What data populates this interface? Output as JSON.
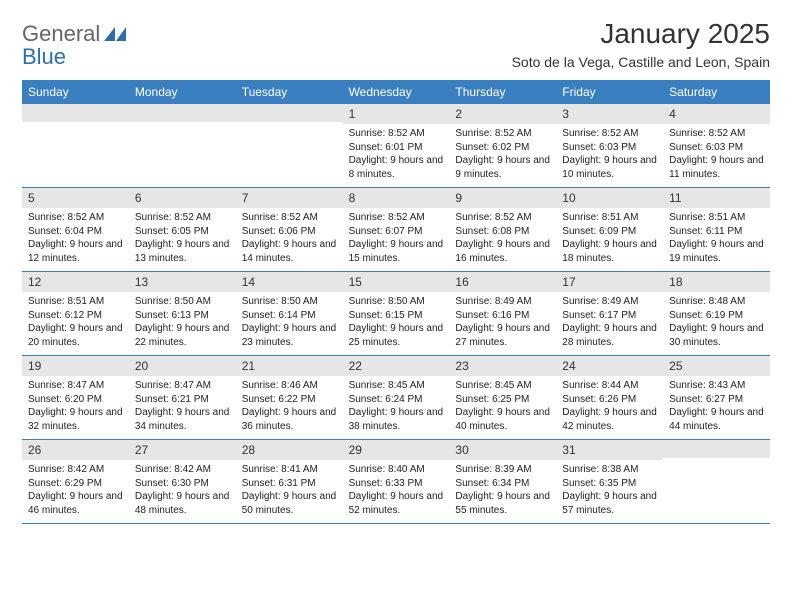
{
  "brand": {
    "word1": "General",
    "word2": "Blue"
  },
  "title": "January 2025",
  "location": "Soto de la Vega, Castille and Leon, Spain",
  "colors": {
    "header_bg": "#3a7fbf",
    "header_fg": "#ffffff",
    "daynum_bg": "#e6e6e6",
    "rule": "#3a7fbf",
    "text": "#333333",
    "brand_accent": "#2f6fa8"
  },
  "day_labels": [
    "Sunday",
    "Monday",
    "Tuesday",
    "Wednesday",
    "Thursday",
    "Friday",
    "Saturday"
  ],
  "weeks": [
    [
      {
        "n": "",
        "sr": "",
        "ss": "",
        "dl": ""
      },
      {
        "n": "",
        "sr": "",
        "ss": "",
        "dl": ""
      },
      {
        "n": "",
        "sr": "",
        "ss": "",
        "dl": ""
      },
      {
        "n": "1",
        "sr": "Sunrise: 8:52 AM",
        "ss": "Sunset: 6:01 PM",
        "dl": "Daylight: 9 hours and 8 minutes."
      },
      {
        "n": "2",
        "sr": "Sunrise: 8:52 AM",
        "ss": "Sunset: 6:02 PM",
        "dl": "Daylight: 9 hours and 9 minutes."
      },
      {
        "n": "3",
        "sr": "Sunrise: 8:52 AM",
        "ss": "Sunset: 6:03 PM",
        "dl": "Daylight: 9 hours and 10 minutes."
      },
      {
        "n": "4",
        "sr": "Sunrise: 8:52 AM",
        "ss": "Sunset: 6:03 PM",
        "dl": "Daylight: 9 hours and 11 minutes."
      }
    ],
    [
      {
        "n": "5",
        "sr": "Sunrise: 8:52 AM",
        "ss": "Sunset: 6:04 PM",
        "dl": "Daylight: 9 hours and 12 minutes."
      },
      {
        "n": "6",
        "sr": "Sunrise: 8:52 AM",
        "ss": "Sunset: 6:05 PM",
        "dl": "Daylight: 9 hours and 13 minutes."
      },
      {
        "n": "7",
        "sr": "Sunrise: 8:52 AM",
        "ss": "Sunset: 6:06 PM",
        "dl": "Daylight: 9 hours and 14 minutes."
      },
      {
        "n": "8",
        "sr": "Sunrise: 8:52 AM",
        "ss": "Sunset: 6:07 PM",
        "dl": "Daylight: 9 hours and 15 minutes."
      },
      {
        "n": "9",
        "sr": "Sunrise: 8:52 AM",
        "ss": "Sunset: 6:08 PM",
        "dl": "Daylight: 9 hours and 16 minutes."
      },
      {
        "n": "10",
        "sr": "Sunrise: 8:51 AM",
        "ss": "Sunset: 6:09 PM",
        "dl": "Daylight: 9 hours and 18 minutes."
      },
      {
        "n": "11",
        "sr": "Sunrise: 8:51 AM",
        "ss": "Sunset: 6:11 PM",
        "dl": "Daylight: 9 hours and 19 minutes."
      }
    ],
    [
      {
        "n": "12",
        "sr": "Sunrise: 8:51 AM",
        "ss": "Sunset: 6:12 PM",
        "dl": "Daylight: 9 hours and 20 minutes."
      },
      {
        "n": "13",
        "sr": "Sunrise: 8:50 AM",
        "ss": "Sunset: 6:13 PM",
        "dl": "Daylight: 9 hours and 22 minutes."
      },
      {
        "n": "14",
        "sr": "Sunrise: 8:50 AM",
        "ss": "Sunset: 6:14 PM",
        "dl": "Daylight: 9 hours and 23 minutes."
      },
      {
        "n": "15",
        "sr": "Sunrise: 8:50 AM",
        "ss": "Sunset: 6:15 PM",
        "dl": "Daylight: 9 hours and 25 minutes."
      },
      {
        "n": "16",
        "sr": "Sunrise: 8:49 AM",
        "ss": "Sunset: 6:16 PM",
        "dl": "Daylight: 9 hours and 27 minutes."
      },
      {
        "n": "17",
        "sr": "Sunrise: 8:49 AM",
        "ss": "Sunset: 6:17 PM",
        "dl": "Daylight: 9 hours and 28 minutes."
      },
      {
        "n": "18",
        "sr": "Sunrise: 8:48 AM",
        "ss": "Sunset: 6:19 PM",
        "dl": "Daylight: 9 hours and 30 minutes."
      }
    ],
    [
      {
        "n": "19",
        "sr": "Sunrise: 8:47 AM",
        "ss": "Sunset: 6:20 PM",
        "dl": "Daylight: 9 hours and 32 minutes."
      },
      {
        "n": "20",
        "sr": "Sunrise: 8:47 AM",
        "ss": "Sunset: 6:21 PM",
        "dl": "Daylight: 9 hours and 34 minutes."
      },
      {
        "n": "21",
        "sr": "Sunrise: 8:46 AM",
        "ss": "Sunset: 6:22 PM",
        "dl": "Daylight: 9 hours and 36 minutes."
      },
      {
        "n": "22",
        "sr": "Sunrise: 8:45 AM",
        "ss": "Sunset: 6:24 PM",
        "dl": "Daylight: 9 hours and 38 minutes."
      },
      {
        "n": "23",
        "sr": "Sunrise: 8:45 AM",
        "ss": "Sunset: 6:25 PM",
        "dl": "Daylight: 9 hours and 40 minutes."
      },
      {
        "n": "24",
        "sr": "Sunrise: 8:44 AM",
        "ss": "Sunset: 6:26 PM",
        "dl": "Daylight: 9 hours and 42 minutes."
      },
      {
        "n": "25",
        "sr": "Sunrise: 8:43 AM",
        "ss": "Sunset: 6:27 PM",
        "dl": "Daylight: 9 hours and 44 minutes."
      }
    ],
    [
      {
        "n": "26",
        "sr": "Sunrise: 8:42 AM",
        "ss": "Sunset: 6:29 PM",
        "dl": "Daylight: 9 hours and 46 minutes."
      },
      {
        "n": "27",
        "sr": "Sunrise: 8:42 AM",
        "ss": "Sunset: 6:30 PM",
        "dl": "Daylight: 9 hours and 48 minutes."
      },
      {
        "n": "28",
        "sr": "Sunrise: 8:41 AM",
        "ss": "Sunset: 6:31 PM",
        "dl": "Daylight: 9 hours and 50 minutes."
      },
      {
        "n": "29",
        "sr": "Sunrise: 8:40 AM",
        "ss": "Sunset: 6:33 PM",
        "dl": "Daylight: 9 hours and 52 minutes."
      },
      {
        "n": "30",
        "sr": "Sunrise: 8:39 AM",
        "ss": "Sunset: 6:34 PM",
        "dl": "Daylight: 9 hours and 55 minutes."
      },
      {
        "n": "31",
        "sr": "Sunrise: 8:38 AM",
        "ss": "Sunset: 6:35 PM",
        "dl": "Daylight: 9 hours and 57 minutes."
      },
      {
        "n": "",
        "sr": "",
        "ss": "",
        "dl": ""
      }
    ]
  ]
}
